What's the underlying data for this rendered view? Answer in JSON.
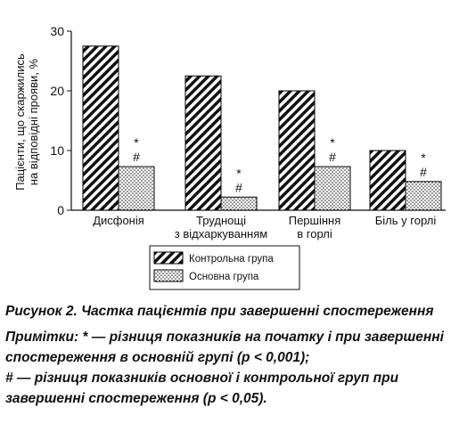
{
  "chart_data": {
    "type": "bar",
    "y_label": "Пацієнти, що скаржились\nна відповідні прояви, %",
    "categories": [
      "Дисфонія",
      "Труднощі\nз відхаркуванням",
      "Першіння\nв горлі",
      "Біль у горлі"
    ],
    "series": [
      {
        "name": "Контрольна група",
        "color": "#000000",
        "pattern": "hatch",
        "values": [
          27.5,
          22.5,
          20,
          10
        ]
      },
      {
        "name": "Основна група",
        "color": "#000000",
        "pattern": "dots",
        "values": [
          7.3,
          2.2,
          7.3,
          4.8
        ],
        "notes": [
          [
            "*",
            "#"
          ],
          [
            "*",
            "#"
          ],
          [
            "*",
            "#"
          ],
          [
            "*",
            "#"
          ]
        ]
      }
    ],
    "ylim": [
      0,
      30
    ],
    "yticks": [
      0,
      10,
      20,
      30
    ],
    "grid": false
  },
  "caption": {
    "title": "Рисунок 2. Частка пацієнтів при завершенні спостереження",
    "notes": [
      "Примітки: * — різниця показників на початку і при завершенні спостереження в основній групі (р < 0,001);",
      "# — різниця показників основної і контрольної груп при завершенні спостереження (р < 0,05)."
    ]
  }
}
